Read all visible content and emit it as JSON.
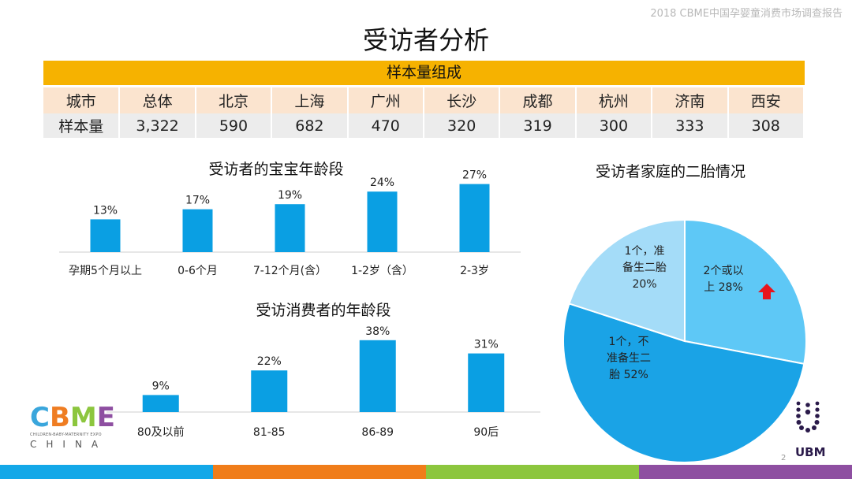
{
  "header_note": "2018 CBME中国孕婴童消费市场调查报告",
  "page_title": "受访者分析",
  "sample_table": {
    "title": "样本量组成",
    "header": [
      "城市",
      "总体",
      "北京",
      "上海",
      "广州",
      "长沙",
      "成都",
      "杭州",
      "济南",
      "西安"
    ],
    "row": [
      "样本量",
      "3,322",
      "590",
      "682",
      "470",
      "320",
      "319",
      "300",
      "333",
      "308"
    ]
  },
  "chart_data": [
    {
      "type": "bar",
      "title": "受访者的宝宝年龄段",
      "categories": [
        "孕期5个月以上",
        "0-6个月",
        "7-12个月(含）",
        "1-2岁（含）",
        "2-3岁"
      ],
      "values": [
        13,
        17,
        19,
        24,
        27
      ],
      "value_labels": [
        "13%",
        "17%",
        "19%",
        "24%",
        "27%"
      ],
      "unit": "%",
      "ylim": [
        0,
        30
      ],
      "color": "#0a9fe3"
    },
    {
      "type": "bar",
      "title": "受访消费者的年龄段",
      "categories": [
        "80及以前",
        "81-85",
        "86-89",
        "90后"
      ],
      "values": [
        9,
        22,
        38,
        31
      ],
      "value_labels": [
        "9%",
        "22%",
        "38%",
        "31%"
      ],
      "unit": "%",
      "ylim": [
        0,
        40
      ],
      "color": "#0a9fe3"
    },
    {
      "type": "pie",
      "title": "受访者家庭的二胎情况",
      "slices": [
        {
          "label": "2个或以上 28%",
          "lines": [
            "2个或以",
            "上 28%"
          ],
          "value": 28,
          "color": "#5ec8f6"
        },
        {
          "label": "1个，不准备生二胎 52%",
          "lines": [
            "1个，不",
            "准备生二",
            "胎 52%"
          ],
          "value": 52,
          "color": "#1aa3e6"
        },
        {
          "label": "1个，准备生二胎 20%",
          "lines": [
            "1个，准",
            "备生二胎",
            "20%"
          ],
          "value": 20,
          "color": "#a4dcf8"
        }
      ],
      "annotation": "red up arrow"
    }
  ],
  "logos": {
    "cbme_letters": [
      "C",
      "B",
      "M",
      "E"
    ],
    "cbme_tagline": "CHILDREN-BABY-MATERNITY EXPO",
    "cbme_sub": "CHINA",
    "ubm": "UBM"
  },
  "page_number": "2",
  "colors": {
    "accent_yellow": "#f6b200",
    "bar_blue": "#0a9fe3",
    "arrow_red": "#e8141c",
    "bottom_bar": [
      "#13a8e8",
      "#f07d1a",
      "#8cc63e",
      "#8e4fa1"
    ]
  }
}
